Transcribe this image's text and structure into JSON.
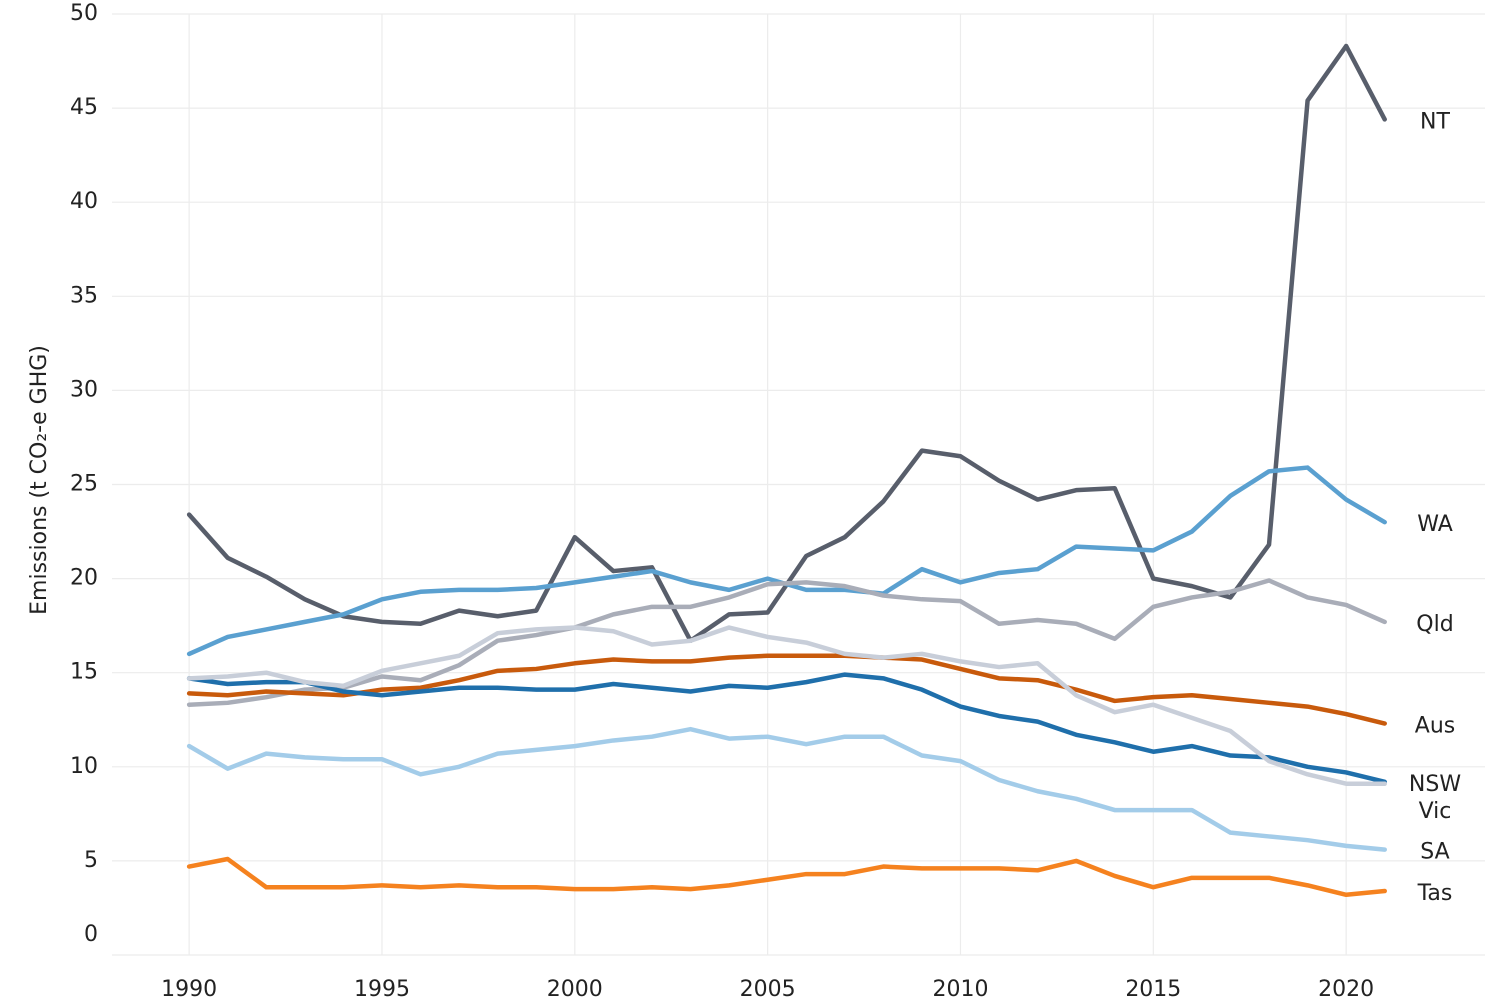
{
  "chart_data": {
    "type": "line",
    "y_label": "Emissions (t CO₂-e GHG)",
    "x": [
      1990,
      1991,
      1992,
      1993,
      1994,
      1995,
      1996,
      1997,
      1998,
      1999,
      2000,
      2001,
      2002,
      2003,
      2004,
      2005,
      2006,
      2007,
      2008,
      2009,
      2010,
      2011,
      2012,
      2013,
      2014,
      2015,
      2016,
      2017,
      2018,
      2019,
      2020,
      2021
    ],
    "xlim": [
      1988,
      2023.6
    ],
    "xticks": [
      1990,
      1995,
      2000,
      2005,
      2010,
      2015,
      2020
    ],
    "ylim": [
      0,
      50
    ],
    "yticks": [
      0,
      5,
      10,
      15,
      20,
      25,
      30,
      35,
      40,
      45,
      50
    ],
    "grid": true,
    "series": [
      {
        "name": "NT",
        "color": "#585e6b",
        "values": [
          23.4,
          21.1,
          20.1,
          18.9,
          18.0,
          17.7,
          17.6,
          18.3,
          18.0,
          18.3,
          22.2,
          20.4,
          20.6,
          16.7,
          18.1,
          18.2,
          21.2,
          22.2,
          24.1,
          26.8,
          26.5,
          25.2,
          24.2,
          24.7,
          24.8,
          20.0,
          19.6,
          19.0,
          21.8,
          45.4,
          48.3,
          44.4
        ]
      },
      {
        "name": "WA",
        "color": "#5aa0d0",
        "values": [
          16.0,
          16.9,
          17.3,
          17.7,
          18.1,
          18.9,
          19.3,
          19.4,
          19.4,
          19.5,
          19.8,
          20.1,
          20.4,
          19.8,
          19.4,
          20.0,
          19.4,
          19.4,
          19.2,
          20.5,
          19.8,
          20.3,
          20.5,
          21.7,
          21.6,
          21.5,
          22.5,
          24.4,
          25.7,
          25.9,
          24.2,
          23.0
        ]
      },
      {
        "name": "Qld",
        "color": "#a9adb8",
        "values": [
          13.3,
          13.4,
          13.7,
          14.1,
          14.2,
          14.8,
          14.6,
          15.4,
          16.7,
          17.0,
          17.4,
          18.1,
          18.5,
          18.5,
          19.0,
          19.7,
          19.8,
          19.6,
          19.1,
          18.9,
          18.8,
          17.6,
          17.8,
          17.6,
          16.8,
          18.5,
          19.0,
          19.3,
          19.9,
          19.0,
          18.6,
          17.7
        ]
      },
      {
        "name": "Aus",
        "color": "#c85a0c",
        "values": [
          13.9,
          13.8,
          14.0,
          13.9,
          13.8,
          14.1,
          14.2,
          14.6,
          15.1,
          15.2,
          15.5,
          15.7,
          15.6,
          15.6,
          15.8,
          15.9,
          15.9,
          15.9,
          15.8,
          15.7,
          15.2,
          14.7,
          14.6,
          14.1,
          13.5,
          13.7,
          13.8,
          13.6,
          13.4,
          13.2,
          12.8,
          12.3
        ]
      },
      {
        "name": "NSW",
        "color": "#1f6fab",
        "values": [
          14.7,
          14.4,
          14.5,
          14.5,
          14.0,
          13.8,
          14.0,
          14.2,
          14.2,
          14.1,
          14.1,
          14.4,
          14.2,
          14.0,
          14.3,
          14.2,
          14.5,
          14.9,
          14.7,
          14.1,
          13.2,
          12.7,
          12.4,
          11.7,
          11.3,
          10.8,
          11.1,
          10.6,
          10.5,
          10.0,
          9.7,
          9.2
        ]
      },
      {
        "name": "Vic",
        "color": "#c8ced9",
        "values": [
          14.7,
          14.8,
          15.0,
          14.5,
          14.3,
          15.1,
          15.5,
          15.9,
          17.1,
          17.3,
          17.4,
          17.2,
          16.5,
          16.7,
          17.4,
          16.9,
          16.6,
          16.0,
          15.8,
          16.0,
          15.6,
          15.3,
          15.5,
          13.8,
          12.9,
          13.3,
          12.6,
          11.9,
          10.3,
          9.6,
          9.1,
          9.1
        ]
      },
      {
        "name": "SA",
        "color": "#a3cce9",
        "values": [
          11.1,
          9.9,
          10.7,
          10.5,
          10.4,
          10.4,
          9.6,
          10.0,
          10.7,
          10.9,
          11.1,
          11.4,
          11.6,
          12.0,
          11.5,
          11.6,
          11.2,
          11.6,
          11.6,
          10.6,
          10.3,
          9.3,
          8.7,
          8.3,
          7.7,
          7.7,
          7.7,
          6.5,
          6.3,
          6.1,
          5.8,
          5.6
        ]
      },
      {
        "name": "Tas",
        "color": "#f5821f",
        "values": [
          4.7,
          5.1,
          3.6,
          3.6,
          3.6,
          3.7,
          3.6,
          3.7,
          3.6,
          3.6,
          3.5,
          3.5,
          3.6,
          3.5,
          3.7,
          4.0,
          4.3,
          4.3,
          4.7,
          4.6,
          4.6,
          4.6,
          4.5,
          5.0,
          4.2,
          3.6,
          4.1,
          4.1,
          4.1,
          3.7,
          3.2,
          3.4
        ]
      }
    ]
  }
}
